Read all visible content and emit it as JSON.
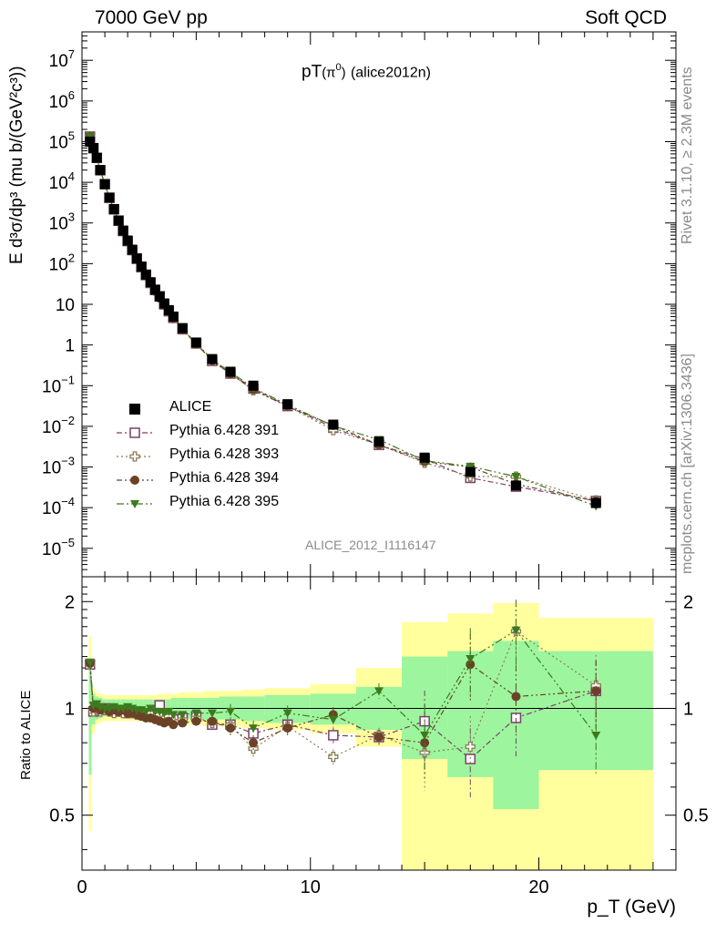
{
  "header": {
    "left": "7000 GeV pp",
    "right": "Soft QCD"
  },
  "plot_title_main": "pT",
  "plot_title_particle": "(π",
  "plot_title_sup": "0",
  "plot_title_close": ")",
  "plot_title_tag": "(alice2012n)",
  "analysis_label": "ALICE_2012_I1116147",
  "side_labels": {
    "rivet": "Rivet 3.1.10, ≥ 2.3M events",
    "mcplots": "mcplots.cern.ch [arXiv:1306.3436]"
  },
  "y_label_main": "E d³σ/dp³ (mu b/(GeV²c³))",
  "y_label_ratio": "Ratio to ALICE",
  "x_label": "p_T (GeV)",
  "legend": [
    {
      "name": "ALICE",
      "color": "#000000",
      "marker": "square-filled"
    },
    {
      "name": "Pythia 6.428 391",
      "color": "#7a3f6f",
      "marker": "square-open"
    },
    {
      "name": "Pythia 6.428 393",
      "color": "#8a7d54",
      "marker": "cross-open"
    },
    {
      "name": "Pythia 6.428 394",
      "color": "#6b4226",
      "marker": "circle-filled"
    },
    {
      "name": "Pythia 6.428 395",
      "color": "#3d7a1e",
      "marker": "triangle-down-filled"
    }
  ],
  "chart_data": {
    "type": "scatter",
    "x_scale": "linear",
    "xlim": [
      0,
      26
    ],
    "x_ticks": [
      0,
      10,
      20
    ],
    "main_y_scale": "log",
    "main_ylim": [
      2e-06,
      50000000.0
    ],
    "main_y_ticks": [
      "10^-5",
      "10^-4",
      "10^-3",
      "10^-2",
      "10^-1",
      "1",
      "10",
      "10^2",
      "10^3",
      "10^4",
      "10^5",
      "10^6",
      "10^7"
    ],
    "ratio_ylim": [
      0.35,
      2.35
    ],
    "ratio_y_ticks": [
      0.5,
      1,
      2
    ],
    "x": [
      0.35,
      0.5,
      0.65,
      0.8,
      1.0,
      1.2,
      1.4,
      1.6,
      1.8,
      2.0,
      2.2,
      2.4,
      2.6,
      2.8,
      3.0,
      3.2,
      3.4,
      3.6,
      3.8,
      4.0,
      4.4,
      5.0,
      5.7,
      6.5,
      7.5,
      9.0,
      11.0,
      13.0,
      15.0,
      17.0,
      19.0,
      22.5
    ],
    "alice": [
      100000.0,
      70000.0,
      40000.0,
      20000.0,
      9000.0,
      4200.0,
      2200.0,
      1150.0,
      650.0,
      370.0,
      220.0,
      135.0,
      85.0,
      54.0,
      35.0,
      23.0,
      15.5,
      10.5,
      7.2,
      5.0,
      2.6,
      1.15,
      0.45,
      0.22,
      0.1,
      0.035,
      0.011,
      0.0042,
      0.0017,
      0.00075,
      0.00035,
      0.00013
    ],
    "ratio_series": [
      {
        "name": "Pythia 6.428 391",
        "values": [
          1.33,
          0.98,
          1.0,
          0.99,
          1.0,
          0.99,
          0.98,
          0.99,
          0.98,
          0.97,
          0.98,
          0.97,
          0.96,
          0.97,
          0.96,
          0.98,
          1.02,
          0.95,
          0.94,
          0.93,
          0.94,
          0.95,
          0.9,
          0.9,
          0.85,
          0.9,
          0.84,
          0.83,
          0.92,
          0.72,
          0.94,
          1.12
        ]
      },
      {
        "name": "Pythia 6.428 393",
        "values": [
          1.33,
          0.98,
          0.99,
          0.98,
          0.99,
          0.98,
          0.97,
          0.99,
          0.97,
          0.98,
          0.97,
          0.96,
          0.97,
          0.96,
          0.97,
          0.95,
          0.96,
          0.94,
          0.95,
          0.92,
          0.93,
          0.94,
          0.91,
          0.9,
          0.77,
          0.89,
          0.73,
          0.84,
          0.75,
          0.78,
          1.65,
          1.16
        ]
      },
      {
        "name": "Pythia 6.428 394",
        "values": [
          1.34,
          1.0,
          1.01,
          0.99,
          1.0,
          0.98,
          0.99,
          0.98,
          0.99,
          0.97,
          0.97,
          0.96,
          0.95,
          0.94,
          0.94,
          0.93,
          0.92,
          0.91,
          0.92,
          0.9,
          0.91,
          0.92,
          0.92,
          0.88,
          0.8,
          0.88,
          0.96,
          0.83,
          0.8,
          1.33,
          1.08,
          1.12
        ]
      },
      {
        "name": "Pythia 6.428 395",
        "values": [
          1.35,
          1.02,
          1.03,
          1.01,
          1.0,
          1.0,
          1.01,
          1.0,
          1.0,
          1.01,
          1.0,
          0.99,
          0.99,
          0.98,
          1.0,
          0.98,
          0.98,
          0.97,
          0.98,
          0.96,
          0.96,
          0.97,
          0.97,
          0.98,
          0.88,
          0.97,
          0.93,
          1.12,
          0.84,
          1.38,
          1.66,
          0.84
        ]
      }
    ],
    "uncertainty_band_edges": [
      0.3,
      0.42,
      0.58,
      0.72,
      0.9,
      1.1,
      1.3,
      1.5,
      1.7,
      1.9,
      2.1,
      2.3,
      2.5,
      2.7,
      2.9,
      3.1,
      3.3,
      3.5,
      3.7,
      3.9,
      4.2,
      4.7,
      5.3,
      6.0,
      7.0,
      8.0,
      10.0,
      12.0,
      14.0,
      16.0,
      18.0,
      20.0,
      25.0
    ],
    "band_stat": [
      [
        0.65,
        1.35
      ],
      [
        0.9,
        1.1
      ],
      [
        0.93,
        1.08
      ],
      [
        0.94,
        1.07
      ],
      [
        0.95,
        1.06
      ],
      [
        0.95,
        1.06
      ],
      [
        0.95,
        1.06
      ],
      [
        0.95,
        1.06
      ],
      [
        0.95,
        1.06
      ],
      [
        0.95,
        1.06
      ],
      [
        0.95,
        1.06
      ],
      [
        0.95,
        1.06
      ],
      [
        0.95,
        1.06
      ],
      [
        0.95,
        1.06
      ],
      [
        0.95,
        1.06
      ],
      [
        0.95,
        1.06
      ],
      [
        0.94,
        1.06
      ],
      [
        0.94,
        1.06
      ],
      [
        0.94,
        1.06
      ],
      [
        0.94,
        1.07
      ],
      [
        0.94,
        1.07
      ],
      [
        0.93,
        1.07
      ],
      [
        0.93,
        1.07
      ],
      [
        0.93,
        1.08
      ],
      [
        0.92,
        1.08
      ],
      [
        0.91,
        1.09
      ],
      [
        0.9,
        1.1
      ],
      [
        0.87,
        1.15
      ],
      [
        0.72,
        1.4
      ],
      [
        0.64,
        1.45
      ],
      [
        0.52,
        1.55
      ],
      [
        0.67,
        1.45
      ]
    ],
    "band_total": [
      [
        0.45,
        1.6
      ],
      [
        0.85,
        1.14
      ],
      [
        0.9,
        1.11
      ],
      [
        0.91,
        1.1
      ],
      [
        0.92,
        1.09
      ],
      [
        0.92,
        1.09
      ],
      [
        0.92,
        1.09
      ],
      [
        0.92,
        1.09
      ],
      [
        0.92,
        1.09
      ],
      [
        0.92,
        1.09
      ],
      [
        0.92,
        1.09
      ],
      [
        0.92,
        1.09
      ],
      [
        0.92,
        1.09
      ],
      [
        0.92,
        1.09
      ],
      [
        0.92,
        1.09
      ],
      [
        0.92,
        1.09
      ],
      [
        0.91,
        1.1
      ],
      [
        0.91,
        1.1
      ],
      [
        0.91,
        1.1
      ],
      [
        0.91,
        1.1
      ],
      [
        0.9,
        1.11
      ],
      [
        0.9,
        1.11
      ],
      [
        0.89,
        1.12
      ],
      [
        0.89,
        1.12
      ],
      [
        0.88,
        1.13
      ],
      [
        0.87,
        1.14
      ],
      [
        0.85,
        1.17
      ],
      [
        0.78,
        1.3
      ],
      [
        0.35,
        1.75
      ],
      [
        0.35,
        1.85
      ],
      [
        0.35,
        1.98
      ],
      [
        0.35,
        1.8
      ]
    ]
  },
  "colors": {
    "band_stat": "#9df59d",
    "band_total": "#ffff9e",
    "axis": "#000000",
    "muted_text": "#8a8a8a"
  }
}
